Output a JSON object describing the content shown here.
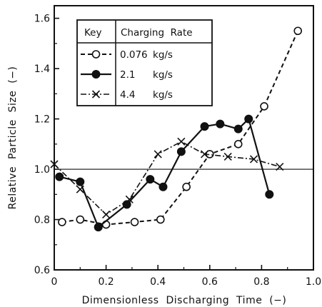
{
  "chart_data": {
    "type": "line",
    "xlabel": "Dimensionless  Discharging  Time  (−)",
    "ylabel": "Relative  Particle  Size  (−)",
    "xlim": [
      0,
      1.0
    ],
    "ylim": [
      0.6,
      1.65
    ],
    "x_ticks": [
      0,
      0.2,
      0.4,
      0.6,
      0.8,
      1.0
    ],
    "x_tick_labels": [
      "0",
      "0.2",
      "0.4",
      "0.6",
      "0.8",
      "1.0"
    ],
    "y_ticks": [
      0.6,
      0.8,
      1.0,
      1.2,
      1.4,
      1.6
    ],
    "y_tick_labels": [
      "0.6",
      "0.8",
      "1.0",
      "1.2",
      "1.4",
      "1.6"
    ],
    "reference_line_y": 1.0,
    "grid": false,
    "legend": {
      "placement": "top-left",
      "header_key": "Key",
      "header_rate": "Charging  Rate"
    },
    "series": [
      {
        "name": "0.076 kg/s",
        "label_value": "0.076",
        "label_unit": "kg/s",
        "marker": "open-circle",
        "line": "dashed",
        "x": [
          0.03,
          0.1,
          0.2,
          0.31,
          0.41,
          0.51,
          0.6,
          0.71,
          0.81,
          0.94
        ],
        "y": [
          0.79,
          0.8,
          0.78,
          0.79,
          0.8,
          0.93,
          1.06,
          1.1,
          1.25,
          1.55
        ]
      },
      {
        "name": "2.1 kg/s",
        "label_value": "2.1",
        "label_unit": "kg/s",
        "marker": "filled-circle",
        "line": "solid",
        "x": [
          0.02,
          0.1,
          0.17,
          0.28,
          0.37,
          0.42,
          0.49,
          0.58,
          0.64,
          0.71,
          0.75,
          0.83
        ],
        "y": [
          0.97,
          0.95,
          0.77,
          0.86,
          0.96,
          0.93,
          1.07,
          1.17,
          1.18,
          1.16,
          1.2,
          0.9
        ]
      },
      {
        "name": "4.4 kg/s",
        "label_value": "4.4",
        "label_unit": "kg/s",
        "marker": "x",
        "line": "dash-dot",
        "x": [
          0.0,
          0.1,
          0.2,
          0.29,
          0.4,
          0.49,
          0.58,
          0.67,
          0.77,
          0.87
        ],
        "y": [
          1.02,
          0.92,
          0.82,
          0.88,
          1.06,
          1.11,
          1.06,
          1.05,
          1.04,
          1.01
        ]
      }
    ]
  }
}
